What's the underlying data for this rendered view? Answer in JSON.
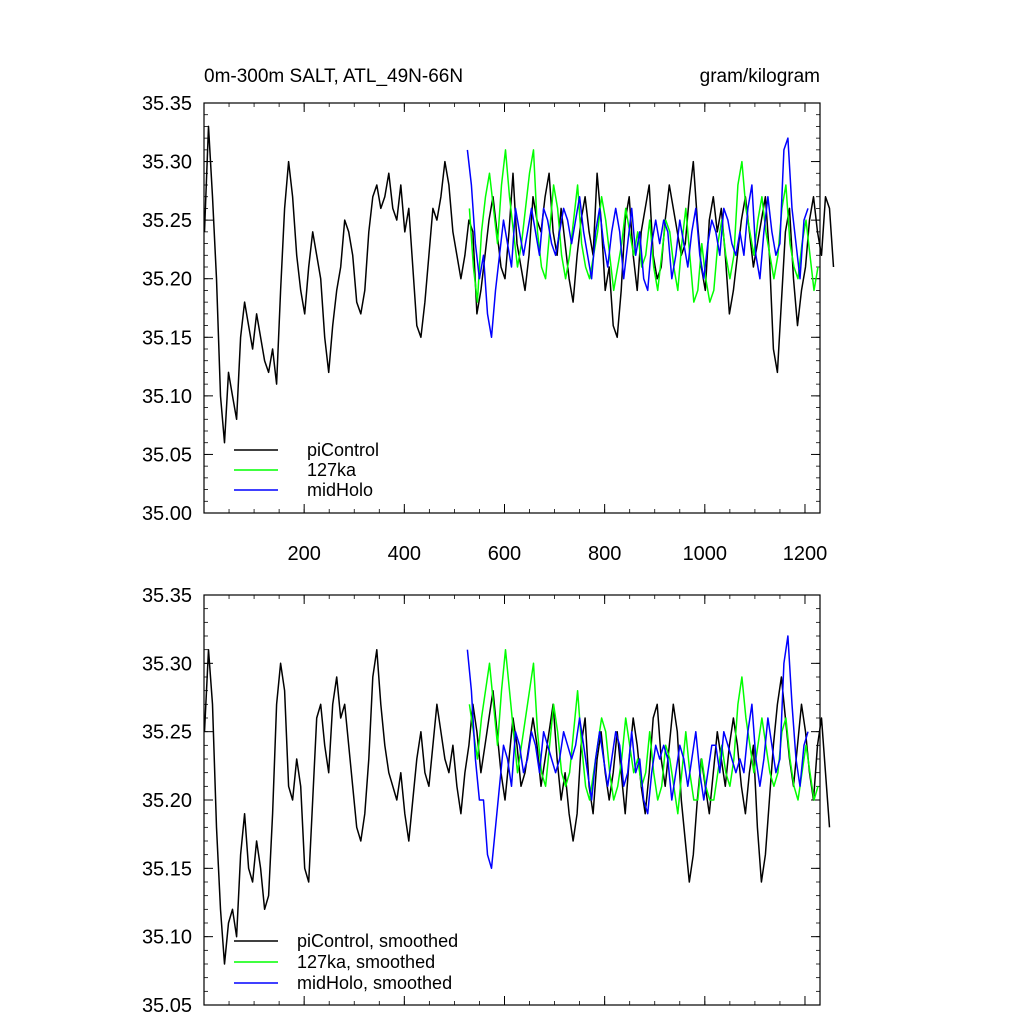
{
  "chart_data": [
    {
      "type": "line",
      "title_left": "0m-300m SALT, ATL_49N-66N",
      "title_right": "gram/kilogram",
      "xlabel": "",
      "ylabel": "",
      "xlim": [
        0,
        1230
      ],
      "ylim": [
        35.0,
        35.35
      ],
      "xticks": [
        200,
        400,
        600,
        800,
        1000,
        1200
      ],
      "xtick_labels": [
        "200",
        "400",
        "600",
        "800",
        "1000",
        "1200"
      ],
      "yticks": [
        35.0,
        35.05,
        35.1,
        35.15,
        35.2,
        35.25,
        35.3,
        35.35
      ],
      "ytick_labels": [
        "35.00",
        "35.05",
        "35.10",
        "35.15",
        "35.20",
        "35.25",
        "35.30",
        "35.35"
      ],
      "grid": false,
      "legend_position": "bottom-left",
      "series": [
        {
          "name": "piControl",
          "color": "#000000",
          "x_start": 1,
          "x_step": 8,
          "values": [
            35.24,
            35.33,
            35.27,
            35.2,
            35.1,
            35.06,
            35.12,
            35.1,
            35.08,
            35.15,
            35.18,
            35.16,
            35.14,
            35.17,
            35.15,
            35.13,
            35.12,
            35.14,
            35.11,
            35.19,
            35.26,
            35.3,
            35.27,
            35.22,
            35.19,
            35.17,
            35.21,
            35.24,
            35.22,
            35.2,
            35.15,
            35.12,
            35.16,
            35.19,
            35.21,
            35.25,
            35.24,
            35.22,
            35.18,
            35.17,
            35.19,
            35.24,
            35.27,
            35.28,
            35.26,
            35.27,
            35.29,
            35.26,
            35.25,
            35.28,
            35.24,
            35.26,
            35.21,
            35.16,
            35.15,
            35.18,
            35.22,
            35.26,
            35.25,
            35.27,
            35.3,
            35.28,
            35.24,
            35.22,
            35.2,
            35.22,
            35.25,
            35.24,
            35.17,
            35.19,
            35.22,
            35.25,
            35.27,
            35.24,
            35.21,
            35.2,
            35.24,
            35.29,
            35.23,
            35.21,
            35.19,
            35.22,
            35.27,
            35.25,
            35.24,
            35.27,
            35.29,
            35.24,
            35.22,
            35.26,
            35.23,
            35.2,
            35.18,
            35.22,
            35.25,
            35.27,
            35.24,
            35.22,
            35.29,
            35.25,
            35.19,
            35.21,
            35.16,
            35.15,
            35.19,
            35.25,
            35.27,
            35.22,
            35.19,
            35.24,
            35.26,
            35.28,
            35.22,
            35.2,
            35.21,
            35.25,
            35.28,
            35.26,
            35.24,
            35.22,
            35.23,
            35.27,
            35.3,
            35.25,
            35.21,
            35.19,
            35.25,
            35.27,
            35.24,
            35.26,
            35.22,
            35.17,
            35.19,
            35.22,
            35.25,
            35.27,
            35.24,
            35.21,
            35.23,
            35.25,
            35.27,
            35.22,
            35.14,
            35.12,
            35.18,
            35.24,
            35.26,
            35.2,
            35.16,
            35.19,
            35.21,
            35.25,
            35.27,
            35.24,
            35.22,
            35.27,
            35.26,
            35.21
          ]
        },
        {
          "name": "127ka",
          "color": "#00ff00",
          "x_start": 530,
          "x_step": 8,
          "values": [
            35.26,
            35.21,
            35.18,
            35.24,
            35.27,
            35.29,
            35.26,
            35.23,
            35.28,
            35.31,
            35.27,
            35.24,
            35.21,
            35.23,
            35.26,
            35.29,
            35.31,
            35.24,
            35.21,
            35.2,
            35.24,
            35.28,
            35.26,
            35.22,
            35.2,
            35.22,
            35.25,
            35.28,
            35.23,
            35.21,
            35.2,
            35.22,
            35.24,
            35.27,
            35.25,
            35.22,
            35.19,
            35.21,
            35.23,
            35.26,
            35.24,
            35.22,
            35.24,
            35.21,
            35.22,
            35.25,
            35.21,
            35.19,
            35.22,
            35.25,
            35.24,
            35.21,
            35.19,
            35.23,
            35.26,
            35.22,
            35.18,
            35.19,
            35.23,
            35.2,
            35.18,
            35.19,
            35.23,
            35.25,
            35.22,
            35.2,
            35.22,
            35.28,
            35.3,
            35.26,
            35.24,
            35.22,
            35.25,
            35.27,
            35.24,
            35.22,
            35.2,
            35.22,
            35.26,
            35.28,
            35.23,
            35.21,
            35.2,
            35.23,
            35.25,
            35.22,
            35.19,
            35.21
          ]
        },
        {
          "name": "midHolo",
          "color": "#0000ff",
          "x_start": 526,
          "x_step": 8,
          "values": [
            35.31,
            35.28,
            35.23,
            35.2,
            35.22,
            35.17,
            35.15,
            35.19,
            35.22,
            35.25,
            35.23,
            35.21,
            35.26,
            35.24,
            35.22,
            35.24,
            35.26,
            35.24,
            35.22,
            35.26,
            35.25,
            35.23,
            35.22,
            35.24,
            35.26,
            35.25,
            35.23,
            35.25,
            35.27,
            35.24,
            35.22,
            35.2,
            35.24,
            35.26,
            35.23,
            35.21,
            35.24,
            35.26,
            35.24,
            35.2,
            35.23,
            35.26,
            35.22,
            35.24,
            35.2,
            35.19,
            35.23,
            35.25,
            35.23,
            35.25,
            35.24,
            35.2,
            35.22,
            35.25,
            35.23,
            35.21,
            35.24,
            35.26,
            35.22,
            35.2,
            35.23,
            35.25,
            35.24,
            35.22,
            35.26,
            35.25,
            35.23,
            35.22,
            35.24,
            35.22,
            35.26,
            35.28,
            35.22,
            35.2,
            35.24,
            35.27,
            35.24,
            35.22,
            35.23,
            35.31,
            35.32,
            35.26,
            35.23,
            35.2,
            35.25,
            35.26
          ]
        }
      ]
    },
    {
      "type": "line",
      "title": "",
      "xlabel": "",
      "ylabel": "",
      "xlim": [
        0,
        1230
      ],
      "ylim": [
        35.05,
        35.35
      ],
      "xticks": [
        200,
        400,
        600,
        800,
        1000,
        1200
      ],
      "yticks": [
        35.05,
        35.1,
        35.15,
        35.2,
        35.25,
        35.3,
        35.35
      ],
      "ytick_labels": [
        "35.05",
        "35.10",
        "35.15",
        "35.20",
        "35.25",
        "35.30",
        "35.35"
      ],
      "grid": false,
      "legend_position": "bottom-left",
      "series": [
        {
          "name": "piControl, smoothed",
          "color": "#000000",
          "x_start": 1,
          "x_step": 8,
          "values": [
            35.25,
            35.31,
            35.27,
            35.18,
            35.12,
            35.08,
            35.11,
            35.12,
            35.1,
            35.16,
            35.19,
            35.15,
            35.14,
            35.17,
            35.15,
            35.12,
            35.13,
            35.19,
            35.27,
            35.3,
            35.28,
            35.21,
            35.2,
            35.23,
            35.21,
            35.15,
            35.14,
            35.2,
            35.26,
            35.27,
            35.24,
            35.22,
            35.27,
            35.29,
            35.26,
            35.27,
            35.24,
            35.21,
            35.18,
            35.17,
            35.19,
            35.23,
            35.29,
            35.31,
            35.27,
            35.24,
            35.22,
            35.21,
            35.2,
            35.22,
            35.19,
            35.17,
            35.2,
            35.23,
            35.25,
            35.22,
            35.21,
            35.24,
            35.27,
            35.25,
            35.23,
            35.22,
            35.24,
            35.21,
            35.19,
            35.22,
            35.24,
            35.27,
            35.25,
            35.22,
            35.24,
            35.26,
            35.28,
            35.25,
            35.22,
            35.2,
            35.23,
            35.26,
            35.24,
            35.21,
            35.22,
            35.24,
            35.26,
            35.24,
            35.21,
            35.23,
            35.25,
            35.27,
            35.23,
            35.2,
            35.22,
            35.19,
            35.17,
            35.19,
            35.24,
            35.26,
            35.21,
            35.19,
            35.23,
            35.25,
            35.22,
            35.2,
            35.22,
            35.25,
            35.22,
            35.19,
            35.23,
            35.26,
            35.24,
            35.21,
            35.19,
            35.22,
            35.26,
            35.27,
            35.23,
            35.21,
            35.24,
            35.27,
            35.25,
            35.2,
            35.17,
            35.14,
            35.16,
            35.2,
            35.23,
            35.21,
            35.19,
            35.22,
            35.25,
            35.23,
            35.21,
            35.24,
            35.26,
            35.24,
            35.21,
            35.19,
            35.22,
            35.24,
            35.18,
            35.14,
            35.16,
            35.2,
            35.24,
            35.27,
            35.29,
            35.26,
            35.23,
            35.21,
            35.24,
            35.27,
            35.25,
            35.22,
            35.2,
            35.24,
            35.26,
            35.22,
            35.18
          ]
        },
        {
          "name": "127ka, smoothed",
          "color": "#00ff00",
          "x_start": 530,
          "x_step": 8,
          "values": [
            35.27,
            35.25,
            35.23,
            35.26,
            35.28,
            35.3,
            35.27,
            35.24,
            35.28,
            35.31,
            35.28,
            35.25,
            35.22,
            35.24,
            35.26,
            35.28,
            35.3,
            35.25,
            35.22,
            35.21,
            35.24,
            35.27,
            35.25,
            35.22,
            35.21,
            35.22,
            35.25,
            35.28,
            35.24,
            35.21,
            35.2,
            35.22,
            35.24,
            35.26,
            35.25,
            35.22,
            35.2,
            35.21,
            35.23,
            35.26,
            35.24,
            35.22,
            35.23,
            35.21,
            35.22,
            35.25,
            35.22,
            35.2,
            35.21,
            35.24,
            35.23,
            35.21,
            35.19,
            35.22,
            35.25,
            35.22,
            35.2,
            35.2,
            35.23,
            35.21,
            35.2,
            35.2,
            35.22,
            35.24,
            35.22,
            35.21,
            35.23,
            35.27,
            35.29,
            35.26,
            35.24,
            35.22,
            35.24,
            35.26,
            35.24,
            35.22,
            35.21,
            35.22,
            35.25,
            35.26,
            35.23,
            35.21,
            35.2,
            35.22,
            35.24,
            35.22,
            35.2,
            35.21
          ]
        },
        {
          "name": "midHolo, smoothed",
          "color": "#0000ff",
          "x_start": 526,
          "x_step": 8,
          "values": [
            35.31,
            35.28,
            35.23,
            35.2,
            35.2,
            35.16,
            35.15,
            35.18,
            35.21,
            35.24,
            35.23,
            35.21,
            35.25,
            35.24,
            35.22,
            35.23,
            35.25,
            35.24,
            35.22,
            35.25,
            35.24,
            35.23,
            35.22,
            35.23,
            35.25,
            35.24,
            35.23,
            35.24,
            35.26,
            35.24,
            35.22,
            35.2,
            35.23,
            35.25,
            35.23,
            35.21,
            35.23,
            35.25,
            35.24,
            35.21,
            35.22,
            35.25,
            35.22,
            35.23,
            35.2,
            35.19,
            35.22,
            35.24,
            35.23,
            35.24,
            35.23,
            35.2,
            35.22,
            35.24,
            35.23,
            35.21,
            35.23,
            35.25,
            35.22,
            35.2,
            35.22,
            35.24,
            35.24,
            35.22,
            35.25,
            35.24,
            35.23,
            35.22,
            35.23,
            35.22,
            35.25,
            35.27,
            35.23,
            35.21,
            35.23,
            35.26,
            35.24,
            35.22,
            35.23,
            35.3,
            35.32,
            35.27,
            35.23,
            35.21,
            35.24,
            35.25
          ]
        }
      ]
    }
  ]
}
